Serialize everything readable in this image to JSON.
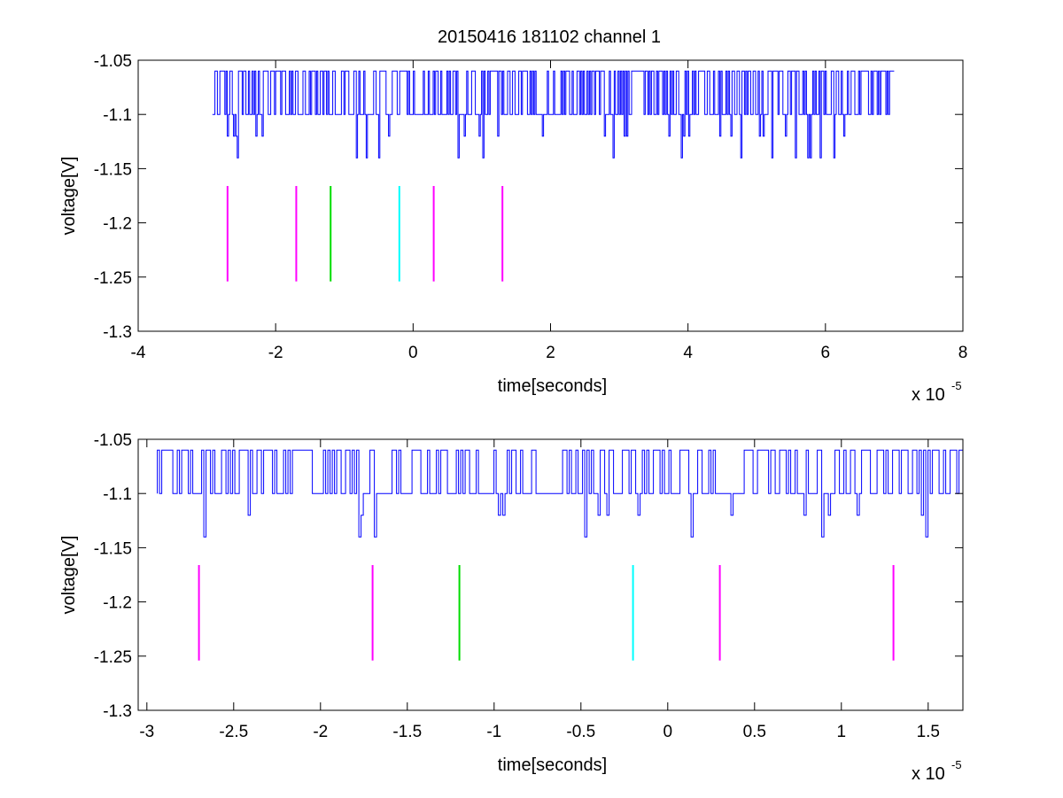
{
  "figure": {
    "title": "20150416 181102 channel 1"
  },
  "chart_data": [
    {
      "type": "line",
      "title": "20150416 181102 channel 1",
      "xlabel": "time[seconds]",
      "ylabel": "voltage[V]",
      "x_exponent_label": "x 10",
      "x_exponent": "-5",
      "x_scale": 1e-05,
      "xlim": [
        -4,
        8
      ],
      "ylim": [
        -1.3,
        -1.05
      ],
      "xticks": [
        -4,
        -2,
        0,
        2,
        4,
        6,
        8
      ],
      "xtick_labels": [
        "-4",
        "-2",
        "0",
        "2",
        "4",
        "6",
        "8"
      ],
      "yticks": [
        -1.3,
        -1.25,
        -1.2,
        -1.15,
        -1.1,
        -1.05
      ],
      "ytick_labels": [
        "-1.3",
        "-1.25",
        "-1.2",
        "-1.15",
        "-1.1",
        "-1.05"
      ],
      "grid": false,
      "signal": {
        "color": "#0000ff",
        "x_range": [
          -2.92,
          7.0
        ],
        "levels": [
          -1.06,
          -1.1,
          -1.12,
          -1.14
        ],
        "baseline": -1.1
      },
      "markers": [
        {
          "x": -2.7,
          "y_range": [
            -1.254,
            -1.166
          ],
          "color": "#ff00ff"
        },
        {
          "x": -1.7,
          "y_range": [
            -1.254,
            -1.166
          ],
          "color": "#ff00ff"
        },
        {
          "x": -1.2,
          "y_range": [
            -1.254,
            -1.166
          ],
          "color": "#00dd00"
        },
        {
          "x": -0.2,
          "y_range": [
            -1.254,
            -1.166
          ],
          "color": "#00ffff"
        },
        {
          "x": 0.3,
          "y_range": [
            -1.254,
            -1.166
          ],
          "color": "#ff00ff"
        },
        {
          "x": 1.3,
          "y_range": [
            -1.254,
            -1.166
          ],
          "color": "#ff00ff"
        }
      ]
    },
    {
      "type": "line",
      "title": "",
      "xlabel": "time[seconds]",
      "ylabel": "voltage[V]",
      "x_exponent_label": "x 10",
      "x_exponent": "-5",
      "x_scale": 1e-05,
      "xlim": [
        -3.05,
        1.7
      ],
      "ylim": [
        -1.3,
        -1.05
      ],
      "xticks": [
        -3,
        -2.5,
        -2,
        -1.5,
        -1,
        -0.5,
        0,
        0.5,
        1,
        1.5
      ],
      "xtick_labels": [
        "-3",
        "-2.5",
        "-2",
        "-1.5",
        "-1",
        "-0.5",
        "0",
        "0.5",
        "1",
        "1.5"
      ],
      "yticks": [
        -1.3,
        -1.25,
        -1.2,
        -1.15,
        -1.1,
        -1.05
      ],
      "ytick_labels": [
        "-1.3",
        "-1.25",
        "-1.2",
        "-1.15",
        "-1.1",
        "-1.05"
      ],
      "grid": false,
      "signal": {
        "color": "#0000ff",
        "x_range": [
          -2.94,
          1.7
        ],
        "levels": [
          -1.06,
          -1.08,
          -1.1,
          -1.12,
          -1.14
        ],
        "baseline": -1.1
      },
      "markers": [
        {
          "x": -2.7,
          "y_range": [
            -1.254,
            -1.166
          ],
          "color": "#ff00ff"
        },
        {
          "x": -1.7,
          "y_range": [
            -1.254,
            -1.166
          ],
          "color": "#ff00ff"
        },
        {
          "x": -1.2,
          "y_range": [
            -1.254,
            -1.166
          ],
          "color": "#00dd00"
        },
        {
          "x": -0.2,
          "y_range": [
            -1.254,
            -1.166
          ],
          "color": "#00ffff"
        },
        {
          "x": 0.3,
          "y_range": [
            -1.254,
            -1.166
          ],
          "color": "#ff00ff"
        },
        {
          "x": 1.3,
          "y_range": [
            -1.254,
            -1.166
          ],
          "color": "#ff00ff"
        }
      ]
    }
  ]
}
